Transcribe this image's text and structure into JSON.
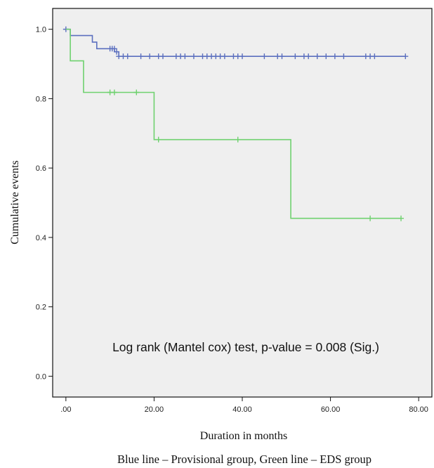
{
  "chart_data": {
    "type": "line",
    "title": "",
    "xlabel": "Duration in months",
    "ylabel": "Cumulative events",
    "xlim": [
      -3,
      83
    ],
    "ylim": [
      -0.06,
      1.06
    ],
    "x_ticks": [
      0,
      20,
      40,
      60,
      80
    ],
    "x_tick_labels": [
      ".00",
      "20.00",
      "40.00",
      "60.00",
      "80.00"
    ],
    "y_ticks": [
      0,
      0.2,
      0.4,
      0.6,
      0.8,
      1.0
    ],
    "y_tick_labels": [
      "0.0",
      "0.2",
      "0.4",
      "0.6",
      "0.8",
      "1.0"
    ],
    "grid": false,
    "step": true,
    "annotation": "Log rank (Mantel cox) test, p-value = 0.008 (Sig.)",
    "caption": "Blue line – Provisional group, Green line – EDS group",
    "series": [
      {
        "color": "#5b6fbf",
        "x": [
          0,
          1,
          6,
          7,
          9.5,
          11,
          12,
          77
        ],
        "y": [
          1.0,
          0.982,
          0.963,
          0.944,
          0.944,
          0.935,
          0.922,
          0.922
        ],
        "censored_x": [
          0,
          10,
          10.5,
          11,
          11.5,
          12,
          13,
          14,
          17,
          19,
          21,
          22,
          25,
          26,
          27,
          29,
          31,
          32,
          33,
          34,
          35,
          36,
          38,
          39,
          40,
          45,
          48,
          49,
          52,
          54,
          55,
          57,
          59,
          61,
          63,
          68,
          69,
          70,
          77
        ],
        "censored_y": [
          1.0,
          0.944,
          0.944,
          0.944,
          0.935,
          0.922,
          0.922,
          0.922,
          0.922,
          0.922,
          0.922,
          0.922,
          0.922,
          0.922,
          0.922,
          0.922,
          0.922,
          0.922,
          0.922,
          0.922,
          0.922,
          0.922,
          0.922,
          0.922,
          0.922,
          0.922,
          0.922,
          0.922,
          0.922,
          0.922,
          0.922,
          0.922,
          0.922,
          0.922,
          0.922,
          0.922,
          0.922,
          0.922,
          0.922
        ]
      },
      {
        "color": "#6fd16f",
        "x": [
          0,
          1,
          4,
          20,
          51,
          76
        ],
        "y": [
          1.0,
          0.909,
          0.818,
          0.682,
          0.455,
          0.455
        ],
        "censored_x": [
          10,
          11,
          16,
          21,
          39,
          69,
          76
        ],
        "censored_y": [
          0.818,
          0.818,
          0.818,
          0.682,
          0.682,
          0.455,
          0.455
        ]
      }
    ]
  }
}
